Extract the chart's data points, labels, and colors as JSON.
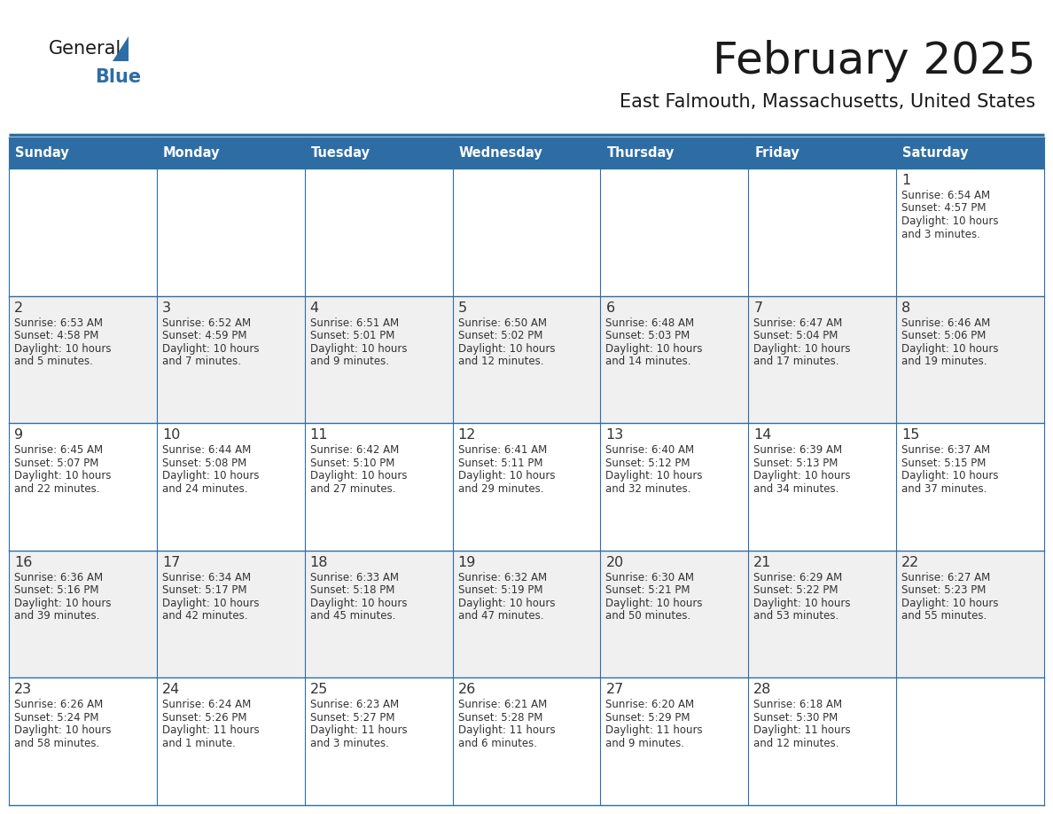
{
  "title": "February 2025",
  "subtitle": "East Falmouth, Massachusetts, United States",
  "header_bg": "#2E6DA4",
  "header_text_color": "#FFFFFF",
  "cell_bg_white": "#FFFFFF",
  "cell_bg_gray": "#F0F0F0",
  "border_color": "#2E6DA4",
  "day_headers": [
    "Sunday",
    "Monday",
    "Tuesday",
    "Wednesday",
    "Thursday",
    "Friday",
    "Saturday"
  ],
  "title_color": "#1a1a1a",
  "subtitle_color": "#1a1a1a",
  "cell_text_color": "#333333",
  "day_num_color": "#333333",
  "logo_general_color": "#1a1a1a",
  "logo_blue_color": "#2E6DA4",
  "logo_triangle_color": "#2E6DA4",
  "days": [
    {
      "date": 1,
      "row": 0,
      "col": 6,
      "sunrise": "6:54 AM",
      "sunset": "4:57 PM",
      "daylight": "10 hours and 3 minutes."
    },
    {
      "date": 2,
      "row": 1,
      "col": 0,
      "sunrise": "6:53 AM",
      "sunset": "4:58 PM",
      "daylight": "10 hours and 5 minutes."
    },
    {
      "date": 3,
      "row": 1,
      "col": 1,
      "sunrise": "6:52 AM",
      "sunset": "4:59 PM",
      "daylight": "10 hours and 7 minutes."
    },
    {
      "date": 4,
      "row": 1,
      "col": 2,
      "sunrise": "6:51 AM",
      "sunset": "5:01 PM",
      "daylight": "10 hours and 9 minutes."
    },
    {
      "date": 5,
      "row": 1,
      "col": 3,
      "sunrise": "6:50 AM",
      "sunset": "5:02 PM",
      "daylight": "10 hours and 12 minutes."
    },
    {
      "date": 6,
      "row": 1,
      "col": 4,
      "sunrise": "6:48 AM",
      "sunset": "5:03 PM",
      "daylight": "10 hours and 14 minutes."
    },
    {
      "date": 7,
      "row": 1,
      "col": 5,
      "sunrise": "6:47 AM",
      "sunset": "5:04 PM",
      "daylight": "10 hours and 17 minutes."
    },
    {
      "date": 8,
      "row": 1,
      "col": 6,
      "sunrise": "6:46 AM",
      "sunset": "5:06 PM",
      "daylight": "10 hours and 19 minutes."
    },
    {
      "date": 9,
      "row": 2,
      "col": 0,
      "sunrise": "6:45 AM",
      "sunset": "5:07 PM",
      "daylight": "10 hours and 22 minutes."
    },
    {
      "date": 10,
      "row": 2,
      "col": 1,
      "sunrise": "6:44 AM",
      "sunset": "5:08 PM",
      "daylight": "10 hours and 24 minutes."
    },
    {
      "date": 11,
      "row": 2,
      "col": 2,
      "sunrise": "6:42 AM",
      "sunset": "5:10 PM",
      "daylight": "10 hours and 27 minutes."
    },
    {
      "date": 12,
      "row": 2,
      "col": 3,
      "sunrise": "6:41 AM",
      "sunset": "5:11 PM",
      "daylight": "10 hours and 29 minutes."
    },
    {
      "date": 13,
      "row": 2,
      "col": 4,
      "sunrise": "6:40 AM",
      "sunset": "5:12 PM",
      "daylight": "10 hours and 32 minutes."
    },
    {
      "date": 14,
      "row": 2,
      "col": 5,
      "sunrise": "6:39 AM",
      "sunset": "5:13 PM",
      "daylight": "10 hours and 34 minutes."
    },
    {
      "date": 15,
      "row": 2,
      "col": 6,
      "sunrise": "6:37 AM",
      "sunset": "5:15 PM",
      "daylight": "10 hours and 37 minutes."
    },
    {
      "date": 16,
      "row": 3,
      "col": 0,
      "sunrise": "6:36 AM",
      "sunset": "5:16 PM",
      "daylight": "10 hours and 39 minutes."
    },
    {
      "date": 17,
      "row": 3,
      "col": 1,
      "sunrise": "6:34 AM",
      "sunset": "5:17 PM",
      "daylight": "10 hours and 42 minutes."
    },
    {
      "date": 18,
      "row": 3,
      "col": 2,
      "sunrise": "6:33 AM",
      "sunset": "5:18 PM",
      "daylight": "10 hours and 45 minutes."
    },
    {
      "date": 19,
      "row": 3,
      "col": 3,
      "sunrise": "6:32 AM",
      "sunset": "5:19 PM",
      "daylight": "10 hours and 47 minutes."
    },
    {
      "date": 20,
      "row": 3,
      "col": 4,
      "sunrise": "6:30 AM",
      "sunset": "5:21 PM",
      "daylight": "10 hours and 50 minutes."
    },
    {
      "date": 21,
      "row": 3,
      "col": 5,
      "sunrise": "6:29 AM",
      "sunset": "5:22 PM",
      "daylight": "10 hours and 53 minutes."
    },
    {
      "date": 22,
      "row": 3,
      "col": 6,
      "sunrise": "6:27 AM",
      "sunset": "5:23 PM",
      "daylight": "10 hours and 55 minutes."
    },
    {
      "date": 23,
      "row": 4,
      "col": 0,
      "sunrise": "6:26 AM",
      "sunset": "5:24 PM",
      "daylight": "10 hours and 58 minutes."
    },
    {
      "date": 24,
      "row": 4,
      "col": 1,
      "sunrise": "6:24 AM",
      "sunset": "5:26 PM",
      "daylight": "11 hours and 1 minute."
    },
    {
      "date": 25,
      "row": 4,
      "col": 2,
      "sunrise": "6:23 AM",
      "sunset": "5:27 PM",
      "daylight": "11 hours and 3 minutes."
    },
    {
      "date": 26,
      "row": 4,
      "col": 3,
      "sunrise": "6:21 AM",
      "sunset": "5:28 PM",
      "daylight": "11 hours and 6 minutes."
    },
    {
      "date": 27,
      "row": 4,
      "col": 4,
      "sunrise": "6:20 AM",
      "sunset": "5:29 PM",
      "daylight": "11 hours and 9 minutes."
    },
    {
      "date": 28,
      "row": 4,
      "col": 5,
      "sunrise": "6:18 AM",
      "sunset": "5:30 PM",
      "daylight": "11 hours and 12 minutes."
    }
  ]
}
